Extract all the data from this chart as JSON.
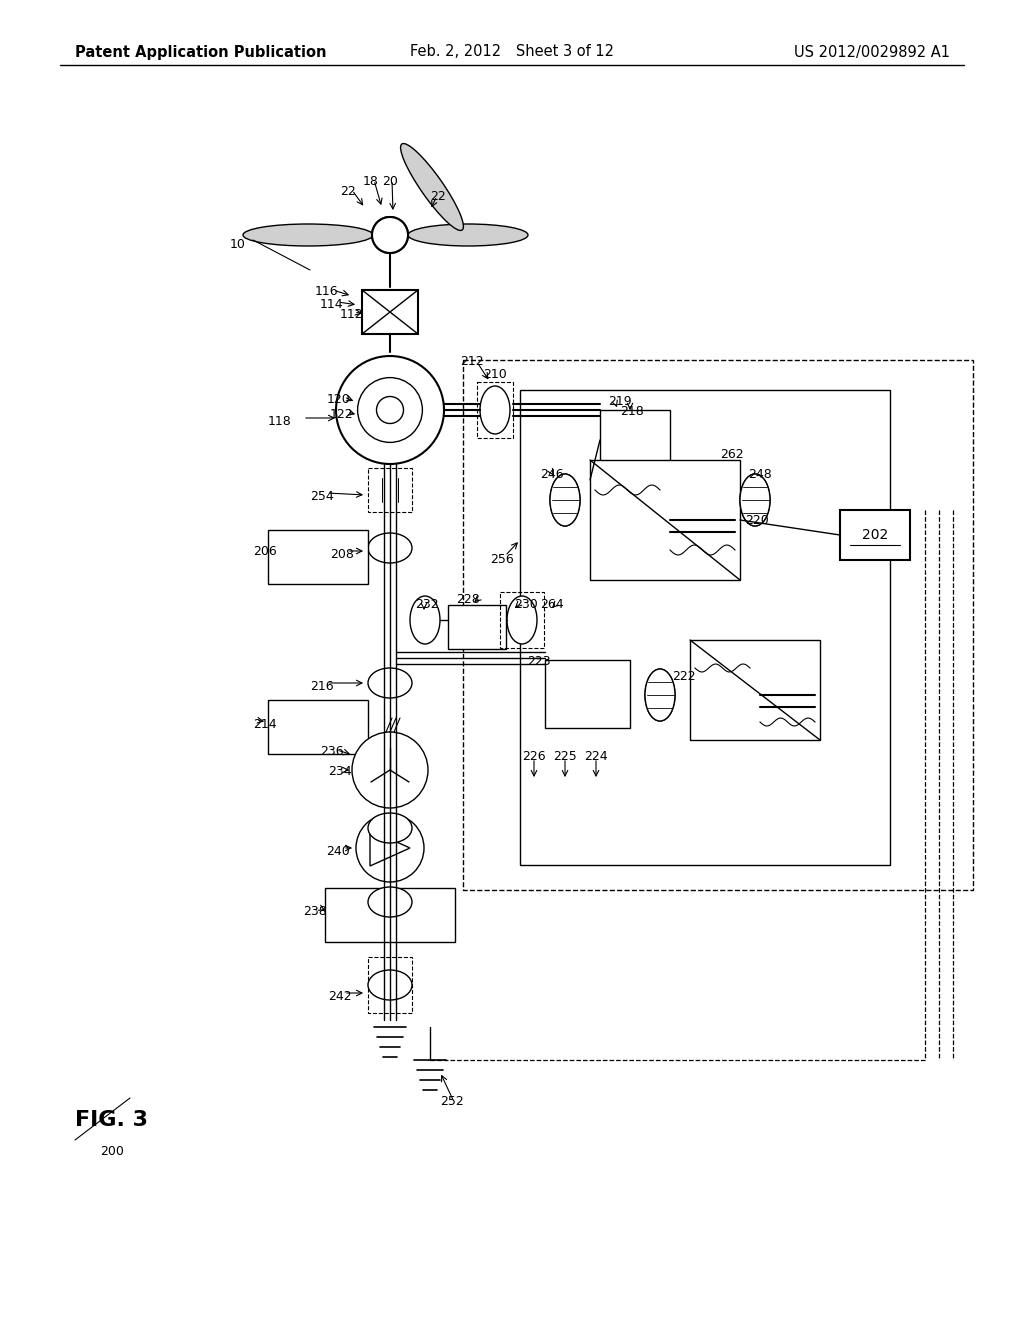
{
  "title_left": "Patent Application Publication",
  "title_mid": "Feb. 2, 2012  Sheet 3 of 12",
  "title_right": "US 2012/0029892 A1",
  "bg_color": "#ffffff",
  "line_color": "#000000",
  "fs_header": 10.5,
  "fs_label": 9.0
}
